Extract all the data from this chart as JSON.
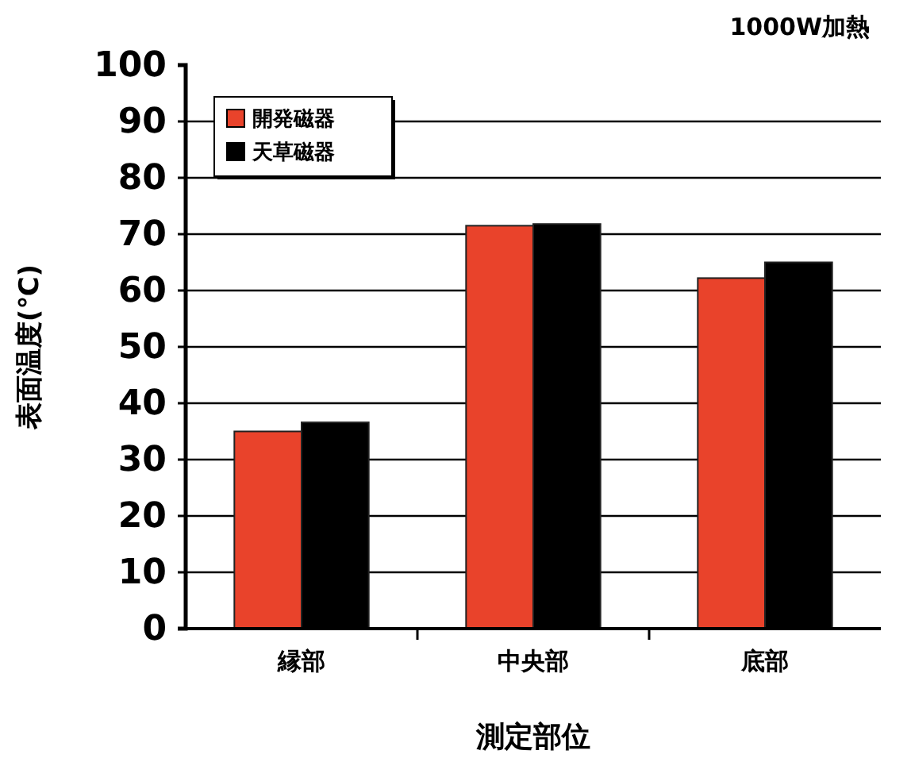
{
  "chart_data": {
    "type": "bar",
    "title": "1000W加熱",
    "xlabel": "測定部位",
    "ylabel": "表面温度(℃)",
    "categories": [
      "縁部",
      "中央部",
      "底部"
    ],
    "series": [
      {
        "name": "開発磁器",
        "color": "#e9432b",
        "values": [
          35,
          71.5,
          62.2
        ]
      },
      {
        "name": "天草磁器",
        "color": "#000000",
        "values": [
          36.6,
          71.8,
          65
        ]
      }
    ],
    "ylim": [
      0,
      100
    ],
    "yticks": [
      0,
      10,
      20,
      30,
      40,
      50,
      60,
      70,
      80,
      90,
      100
    ],
    "grid": "y",
    "legend": "top left"
  }
}
